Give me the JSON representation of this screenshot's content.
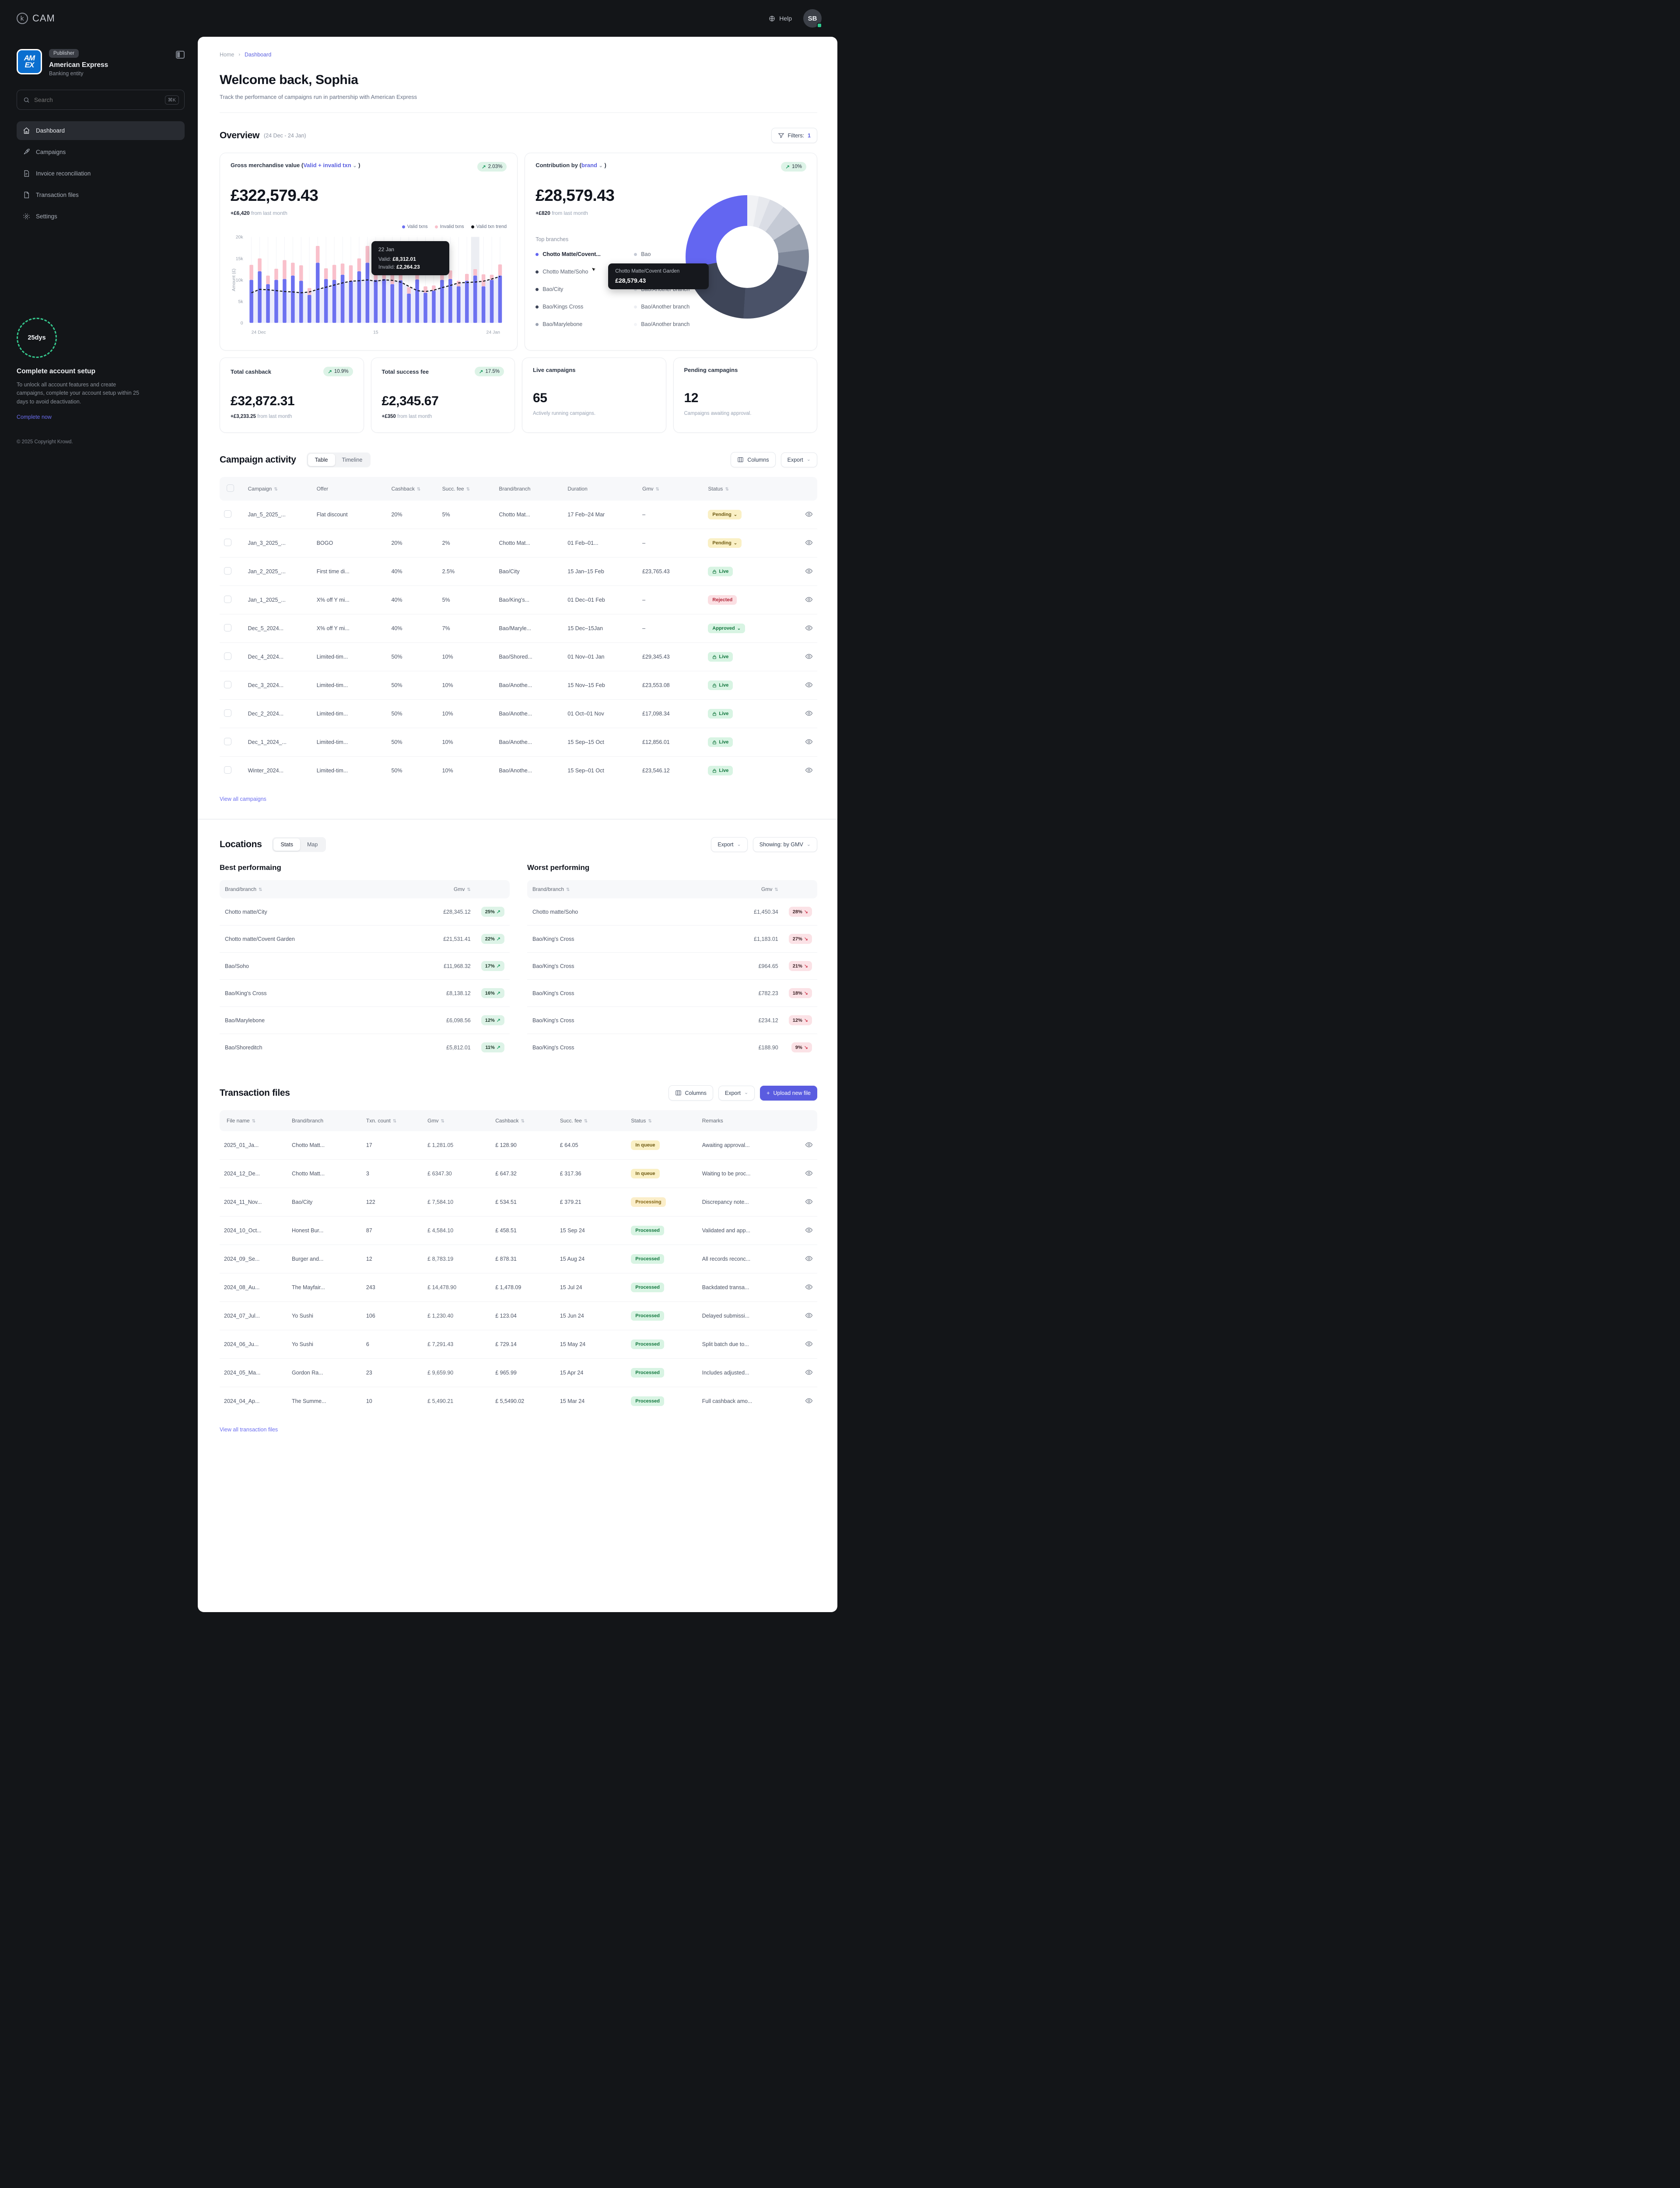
{
  "topbar": {
    "brand": "CAM",
    "help_label": "Help",
    "avatar_initials": "SB"
  },
  "sidebar": {
    "publisher_badge": "Publisher",
    "org_name": "American Express",
    "org_type": "Banking entity",
    "logo_text": "AM EX",
    "search": {
      "placeholder": "Search",
      "shortcut": "⌘K"
    },
    "nav": [
      {
        "label": "Dashboard",
        "icon": "home-icon",
        "active": true
      },
      {
        "label": "Campaigns",
        "icon": "rocket-icon",
        "active": false
      },
      {
        "label": "Invoice reconciliation",
        "icon": "invoice-icon",
        "active": false
      },
      {
        "label": "Transaction files",
        "icon": "file-icon",
        "active": false
      },
      {
        "label": "Settings",
        "icon": "gear-icon",
        "active": false
      }
    ],
    "setup": {
      "days_left": "25dys",
      "title": "Complete account setup",
      "body": "To unlock all account features and create campaigns, complete your account setup within 25 days to avoid deactivation.",
      "cta": "Complete now"
    },
    "copyright": "© 2025 Copyright Krowd."
  },
  "breadcrumb": {
    "home": "Home",
    "sep": "›",
    "current": "Dashboard"
  },
  "page": {
    "title": "Welcome back, Sophia",
    "subtitle": "Track the performance of campaigns run in partnership with American Express"
  },
  "overview": {
    "title": "Overview",
    "range": "(24 Dec - 24 Jan)",
    "filters_label": "Filters:",
    "filters_count": "1"
  },
  "gmv_card": {
    "title_pre": "Gross merchandise value (",
    "title_sel": "Valid + invalid txn",
    "title_post": " )",
    "trend_pill": "2.03%",
    "value": "£322,579.43",
    "delta_bold": "+£6,420",
    "delta_rest": " from last month",
    "legend": [
      {
        "label": "Valid txns",
        "color": "#6d71f0"
      },
      {
        "label": "Invalid txns",
        "color": "#f9c0cb"
      },
      {
        "label": "Valid txn trend",
        "color": "#16181d"
      }
    ],
    "tooltip": {
      "date": "22 Jan",
      "valid_label": "Valid:",
      "valid": "£8,312.01",
      "invalid_label": "Invalid:",
      "invalid": "£2,264.23"
    }
  },
  "contribution_card": {
    "title_pre": "Contribution by (",
    "title_sel": "brand",
    "title_post": " )",
    "trend_pill": "10%",
    "value": "£28,579.43",
    "delta_bold": "+£820",
    "delta_rest": " from last month",
    "top_branches_label": "Top branches",
    "branches_left": [
      {
        "label": "Chotto Matte/Covent...",
        "dot": "#6366f1",
        "bold": true
      },
      {
        "label": "Chotto Matte/Soho",
        "dot": "#3e4558",
        "bold": false
      },
      {
        "label": "Bao/City",
        "dot": "#3e4558",
        "bold": false
      },
      {
        "label": "Bao/Kings Cross",
        "dot": "#3e4558",
        "bold": false
      },
      {
        "label": "Bao/Marylebone",
        "dot": "#9ba3b2",
        "bold": false
      }
    ],
    "branches_right": [
      {
        "label": "Bao",
        "dot": "#c5cad5",
        "bold": false
      },
      {
        "label": "Bao/Camden",
        "dot": "#d5d9e1",
        "bold": false
      },
      {
        "label": "Bao/Another branch",
        "dot": "#e2e5ea",
        "bold": false
      },
      {
        "label": "Bao/Another branch",
        "dot": "#eceef2",
        "bold": false
      },
      {
        "label": "Bao/Another branch",
        "dot": "#f3f4f7",
        "bold": false
      }
    ],
    "tooltip": {
      "title": "Chotto Matte/Covent Garden",
      "value": "£28,579.43"
    }
  },
  "chart_data": [
    {
      "type": "bar",
      "title": "Gross merchandise value",
      "ylabel": "Amount (£)",
      "ylim": [
        0,
        20000
      ],
      "yticks": [
        "0",
        "5k",
        "10k",
        "15k",
        "20k"
      ],
      "xticks": [
        "24 Dec",
        "15",
        "24 Jan"
      ],
      "highlight_index": 27,
      "series": [
        {
          "name": "Valid txns",
          "values": [
            10000,
            12000,
            9000,
            10000,
            10200,
            11000,
            9800,
            6500,
            14000,
            10200,
            10000,
            11200,
            9800,
            12000,
            14000,
            10000,
            10200,
            9000,
            9900,
            6800,
            10100,
            7000,
            7500,
            10000,
            10200,
            8500,
            9800,
            11000,
            8500,
            10000,
            11000
          ]
        },
        {
          "name": "Invalid txns",
          "values": [
            3500,
            3000,
            2000,
            2600,
            4400,
            3000,
            3600,
            1600,
            3900,
            2500,
            3500,
            2600,
            3600,
            3000,
            3900,
            2500,
            3400,
            2500,
            2000,
            1500,
            2200,
            1500,
            1200,
            2000,
            2000,
            1300,
            1600,
            1500,
            2800,
            1200,
            2600
          ]
        },
        {
          "name": "Valid txn trend",
          "values": [
            7000,
            7800,
            7700,
            7500,
            7300,
            7200,
            7000,
            7200,
            7800,
            8300,
            8800,
            9300,
            9700,
            9800,
            10000,
            9700,
            10000,
            9900,
            9500,
            8500,
            7500,
            7300,
            7600,
            8200,
            8700,
            9300,
            9400,
            9500,
            9700,
            10200,
            10800
          ]
        }
      ]
    },
    {
      "type": "pie",
      "title": "Contribution by brand",
      "total": "£28,579.43",
      "slices": [
        {
          "label": "branch-light-1",
          "value": 3,
          "color": "#f1f2f5"
        },
        {
          "label": "branch-light-2",
          "value": 3,
          "color": "#e7e9ee"
        },
        {
          "label": "branch-light-3",
          "value": 4,
          "color": "#dadde5"
        },
        {
          "label": "branch-light-4",
          "value": 6,
          "color": "#c5cad5"
        },
        {
          "label": "Bao/Marylebone",
          "value": 7,
          "color": "#9ba3b2"
        },
        {
          "label": "Bao/Kings Cross",
          "value": 6,
          "color": "#7e8799"
        },
        {
          "label": "Bao/City",
          "value": 22,
          "color": "#4a5268"
        },
        {
          "label": "Chotto Matte/Soho",
          "value": 21,
          "color": "#3e4558"
        },
        {
          "label": "Chotto Matte/Covent Garden",
          "value": 28,
          "color": "#6366f1"
        }
      ]
    }
  ],
  "stats": [
    {
      "title": "Total cashback",
      "pill": "10.9%",
      "value": "£32,872.31",
      "note_bold": "+£3,233.25",
      "note_rest": " from last month"
    },
    {
      "title": "Total success fee",
      "pill": "17.5%",
      "value": "£2,345.67",
      "note_bold": "+£350",
      "note_rest": " from last month"
    },
    {
      "title": "Live campaigns",
      "pill": "",
      "value": "65",
      "note_bold": "",
      "note_rest": "Actively running campaigns."
    },
    {
      "title": "Pending campagins",
      "pill": "",
      "value": "12",
      "note_bold": "",
      "note_rest": "Campaigns awaiting approval."
    }
  ],
  "campaign_activity": {
    "title": "Campaign activity",
    "tabs": [
      "Table",
      "Timeline"
    ],
    "columns_label": "Columns",
    "export_label": "Export",
    "headers": [
      {
        "label": "Campaign",
        "sort": true
      },
      {
        "label": "Offer",
        "sort": false
      },
      {
        "label": "Cashback",
        "sort": true
      },
      {
        "label": "Succ. fee",
        "sort": true
      },
      {
        "label": "Brand/branch",
        "sort": false
      },
      {
        "label": "Duration",
        "sort": false
      },
      {
        "label": "Gmv",
        "sort": true
      },
      {
        "label": "Status",
        "sort": true
      }
    ],
    "rows": [
      {
        "name": "Jan_5_2025_...",
        "offer": "Flat discount",
        "cashback": "20%",
        "fee": "5%",
        "brand": "Chotto Mat...",
        "duration": "17 Feb–24 Mar",
        "gmv": "–",
        "status": "Pending",
        "kind": "pending",
        "chevron": true,
        "lock": false
      },
      {
        "name": "Jan_3_2025_...",
        "offer": "BOGO",
        "cashback": "20%",
        "fee": "2%",
        "brand": "Chotto Mat...",
        "duration": "01 Feb–01...",
        "gmv": "–",
        "status": "Pending",
        "kind": "pending",
        "chevron": true,
        "lock": false
      },
      {
        "name": "Jan_2_2025_...",
        "offer": "First time di...",
        "cashback": "40%",
        "fee": "2.5%",
        "brand": "Bao/City",
        "duration": "15 Jan–15 Feb",
        "gmv": "£23,765.43",
        "status": "Live",
        "kind": "live",
        "chevron": false,
        "lock": true
      },
      {
        "name": "Jan_1_2025_...",
        "offer": "X% off Y mi...",
        "cashback": "40%",
        "fee": "5%",
        "brand": "Bao/King's...",
        "duration": "01 Dec–01 Feb",
        "gmv": "–",
        "status": "Rejected",
        "kind": "rejected",
        "chevron": false,
        "lock": false
      },
      {
        "name": "Dec_5_2024...",
        "offer": "X% off Y mi...",
        "cashback": "40%",
        "fee": "7%",
        "brand": "Bao/Maryle...",
        "duration": "15 Dec–15Jan",
        "gmv": "–",
        "status": "Approved",
        "kind": "approved",
        "chevron": true,
        "lock": false
      },
      {
        "name": "Dec_4_2024...",
        "offer": "Limited-tim...",
        "cashback": "50%",
        "fee": "10%",
        "brand": "Bao/Shored...",
        "duration": "01 Nov–01 Jan",
        "gmv": "£29,345.43",
        "status": "Live",
        "kind": "live",
        "chevron": false,
        "lock": true
      },
      {
        "name": "Dec_3_2024...",
        "offer": "Limited-tim...",
        "cashback": "50%",
        "fee": "10%",
        "brand": "Bao/Anothe...",
        "duration": "15 Nov–15 Feb",
        "gmv": "£23,553.08",
        "status": "Live",
        "kind": "live",
        "chevron": false,
        "lock": true
      },
      {
        "name": "Dec_2_2024...",
        "offer": "Limited-tim...",
        "cashback": "50%",
        "fee": "10%",
        "brand": "Bao/Anothe...",
        "duration": "01 Oct–01 Nov",
        "gmv": "£17,098.34",
        "status": "Live",
        "kind": "live",
        "chevron": false,
        "lock": true
      },
      {
        "name": "Dec_1_2024_...",
        "offer": "Limited-tim...",
        "cashback": "50%",
        "fee": "10%",
        "brand": "Bao/Anothe...",
        "duration": "15 Sep–15 Oct",
        "gmv": "£12,856.01",
        "status": "Live",
        "kind": "live",
        "chevron": false,
        "lock": true
      },
      {
        "name": "Winter_2024...",
        "offer": "Limited-tim...",
        "cashback": "50%",
        "fee": "10%",
        "brand": "Bao/Anothe...",
        "duration": "15 Sep–01 Oct",
        "gmv": "£23,546.12",
        "status": "Live",
        "kind": "live",
        "chevron": false,
        "lock": true
      }
    ],
    "view_all": "View all campaigns"
  },
  "locations": {
    "title": "Locations",
    "tabs": [
      "Stats",
      "Map"
    ],
    "export_label": "Export",
    "showing_label": "Showing: by GMV",
    "best": {
      "title": "Best performaing",
      "headers": [
        {
          "label": "Brand/branch",
          "sort": true
        },
        {
          "label": "Gmv",
          "sort": true
        }
      ],
      "rows": [
        {
          "name": "Chotto matte/City",
          "gmv": "£28,345.12",
          "pct": "25%"
        },
        {
          "name": "Chotto matte/Covent Garden",
          "gmv": "£21,531.41",
          "pct": "22%"
        },
        {
          "name": "Bao/Soho",
          "gmv": "£11,968.32",
          "pct": "17%"
        },
        {
          "name": "Bao/King's Cross",
          "gmv": "£8,138.12",
          "pct": "16%"
        },
        {
          "name": "Bao/Marylebone",
          "gmv": "£6,098.56",
          "pct": "12%"
        },
        {
          "name": "Bao/Shoreditch",
          "gmv": "£5,812.01",
          "pct": "11%"
        }
      ]
    },
    "worst": {
      "title": "Worst performing",
      "headers": [
        {
          "label": "Brand/branch",
          "sort": true
        },
        {
          "label": "Gmv",
          "sort": true
        }
      ],
      "rows": [
        {
          "name": "Chotto matte/Soho",
          "gmv": "£1,450.34",
          "pct": "28%"
        },
        {
          "name": "Bao/King's Cross",
          "gmv": "£1,183.01",
          "pct": "27%"
        },
        {
          "name": "Bao/King's Cross",
          "gmv": "£964.65",
          "pct": "21%"
        },
        {
          "name": "Bao/King's Cross",
          "gmv": "£782.23",
          "pct": "18%"
        },
        {
          "name": "Bao/King's Cross",
          "gmv": "£234.12",
          "pct": "12%"
        },
        {
          "name": "Bao/King's Cross",
          "gmv": "£188.90",
          "pct": "9%"
        }
      ]
    }
  },
  "transaction_files": {
    "title": "Transaction files",
    "columns_label": "Columns",
    "export_label": "Export",
    "upload_label": "Upload new file",
    "headers": [
      {
        "label": "File name",
        "sort": true
      },
      {
        "label": "Brand/branch",
        "sort": false
      },
      {
        "label": "Txn. count",
        "sort": true
      },
      {
        "label": "Gmv",
        "sort": true
      },
      {
        "label": "Cashback",
        "sort": true
      },
      {
        "label": "Succ. fee",
        "sort": true
      },
      {
        "label": "Status",
        "sort": true
      },
      {
        "label": "Remarks",
        "sort": false
      }
    ],
    "rows": [
      {
        "file": "2025_01_Ja...",
        "brand": "Chotto Matt...",
        "count": "17",
        "gmv": "£ 1,281.05",
        "cashback": "£ 128.90",
        "fee": "£ 64.05",
        "status": "In queue",
        "kind": "inqueue",
        "remarks": "Awaiting approval..."
      },
      {
        "file": "2024_12_De...",
        "brand": "Chotto Matt...",
        "count": "3",
        "gmv": "£ 6347.30",
        "cashback": "£ 647.32",
        "fee": "£ 317.36",
        "status": "In queue",
        "kind": "inqueue",
        "remarks": "Waiting to be proc..."
      },
      {
        "file": "2024_11_Nov...",
        "brand": "Bao/City",
        "count": "122",
        "gmv": "£ 7,584.10",
        "cashback": "£ 534.51",
        "fee": "£ 379.21",
        "status": "Processing",
        "kind": "processing",
        "remarks": "Discrepancy note..."
      },
      {
        "file": "2024_10_Oct...",
        "brand": "Honest Bur...",
        "count": "87",
        "gmv": "£ 4,584.10",
        "cashback": "£ 458.51",
        "fee": "15 Sep 24",
        "status": "Processed",
        "kind": "processed",
        "remarks": "Validated and app..."
      },
      {
        "file": "2024_09_Se...",
        "brand": "Burger and...",
        "count": "12",
        "gmv": "£ 8,783.19",
        "cashback": "£ 878.31",
        "fee": "15 Aug 24",
        "status": "Processed",
        "kind": "processed",
        "remarks": "All records reconc..."
      },
      {
        "file": "2024_08_Au...",
        "brand": "The Mayfair...",
        "count": "243",
        "gmv": "£ 14,478.90",
        "cashback": "£ 1,478.09",
        "fee": "15 Jul 24",
        "status": "Processed",
        "kind": "processed",
        "remarks": "Backdated transa..."
      },
      {
        "file": "2024_07_Jul...",
        "brand": "Yo Sushi",
        "count": "106",
        "gmv": "£ 1,230.40",
        "cashback": "£ 123.04",
        "fee": "15 Jun 24",
        "status": "Processed",
        "kind": "processed",
        "remarks": "Delayed submissi..."
      },
      {
        "file": "2024_06_Ju...",
        "brand": "Yo Sushi",
        "count": "6",
        "gmv": "£ 7,291.43",
        "cashback": "£ 729.14",
        "fee": "15 May 24",
        "status": "Processed",
        "kind": "processed",
        "remarks": "Split batch due to..."
      },
      {
        "file": "2024_05_Ma...",
        "brand": "Gordon Ra...",
        "count": "23",
        "gmv": "£ 9,659.90",
        "cashback": "£ 965.99",
        "fee": "15 Apr 24",
        "status": "Processed",
        "kind": "processed",
        "remarks": "Includes adjusted..."
      },
      {
        "file": "2024_04_Ap...",
        "brand": "The Summe...",
        "count": "10",
        "gmv": "£ 5,490.21",
        "cashback": "£ 5,5490.02",
        "fee": "15 Mar 24",
        "status": "Processed",
        "kind": "processed",
        "remarks": "Full cashback amo..."
      }
    ],
    "view_all": "View all transaction files"
  }
}
